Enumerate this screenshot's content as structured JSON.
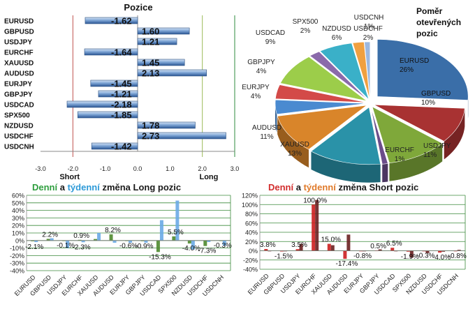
{
  "chart_data": [
    {
      "type": "bar",
      "orientation": "horizontal",
      "title": "Pozice",
      "categories": [
        "EURUSD",
        "GBPUSD",
        "USDJPY",
        "EURCHF",
        "XAUUSD",
        "AUDUSD",
        "EURJPY",
        "GBPJPY",
        "USDCAD",
        "SPX500",
        "NZDUSD",
        "USDCHF",
        "USDCNH"
      ],
      "values": [
        -1.62,
        1.6,
        1.21,
        -1.64,
        1.45,
        2.13,
        -1.45,
        -1.21,
        -2.18,
        -1.85,
        1.78,
        2.73,
        -1.42
      ],
      "labels": [
        "-1.62",
        "1.60",
        "1.21",
        "-1.64",
        "1.45",
        "2.13",
        "-1.45",
        "-1.21",
        "-2.18",
        "-1.85",
        "1.78",
        "2.73",
        "-1.42"
      ],
      "xlim": [
        -3.0,
        3.0
      ],
      "ticks": [
        "-3.0",
        "-2.0",
        "-1.0",
        "0.0",
        "1.0",
        "2.0",
        "3.0"
      ],
      "annotations": {
        "short": "Short",
        "long": "Long"
      },
      "colors": {
        "bar": "#4f81bd",
        "short_line": "#c0504d",
        "long_line": "#9bbb59"
      }
    },
    {
      "type": "pie",
      "title_lines": [
        "Poměr",
        "otevřených",
        "pozic"
      ],
      "slices": [
        {
          "name": "EURUSD",
          "value": 26,
          "label": "EURUSD\n26%",
          "color": "#3a6ea8"
        },
        {
          "name": "GBPUSD",
          "value": 10,
          "label": "GBPUSD\n10%",
          "color": "#a83232"
        },
        {
          "name": "USDJPY",
          "value": 11,
          "label": "USDJPY\n11%",
          "color": "#7fa83a"
        },
        {
          "name": "EURCHF",
          "value": 1,
          "label": "EURCHF\n1%",
          "color": "#6b4d8a"
        },
        {
          "name": "XAUUSD",
          "value": 13,
          "label": "XAUUSD\n13%",
          "color": "#2a92a8"
        },
        {
          "name": "AUDUSD",
          "value": 11,
          "label": "AUDUSD\n11%",
          "color": "#d9852a"
        },
        {
          "name": "EURJPY",
          "value": 4,
          "label": "EURJPY\n4%",
          "color": "#4a8ad0"
        },
        {
          "name": "GBPJPY",
          "value": 4,
          "label": "GBPJPY\n4%",
          "color": "#d34a48"
        },
        {
          "name": "USDCAD",
          "value": 9,
          "label": "USDCAD\n9%",
          "color": "#9ccd4a"
        },
        {
          "name": "SPX500",
          "value": 2,
          "label": "SPX500\n2%",
          "color": "#8a6aaa"
        },
        {
          "name": "NZDUSD",
          "value": 6,
          "label": "NZDUSD\n6%",
          "color": "#3ab0c8"
        },
        {
          "name": "USDCHF",
          "value": 2,
          "label": "USDCHF\n2%",
          "color": "#f0a040"
        },
        {
          "name": "USDCNH",
          "value": 1,
          "label": "USDCNH\n1%",
          "color": "#9cb8e0"
        }
      ]
    },
    {
      "type": "bar",
      "title_parts": [
        {
          "text": "Denní",
          "color": "#2e9e3e"
        },
        {
          "text": " a ",
          "color": "#1a1a1a"
        },
        {
          "text": "týdenní",
          "color": "#2d9ad8"
        },
        {
          "text": " změna Long pozic",
          "color": "#1a1a1a"
        }
      ],
      "categories": [
        "EURUSD",
        "GBPUSD",
        "USDJPY",
        "EURCHF",
        "XAUUSD",
        "AUDUSD",
        "EURJPY",
        "GBPJPY",
        "USDCAD",
        "SPX500",
        "NZDUSD",
        "USDCHF",
        "USDCNH"
      ],
      "series": [
        {
          "name": "Denní",
          "values": [
            -1.0,
            2.2,
            -0.1,
            0.9,
            2.0,
            8.2,
            -0.6,
            -0.9,
            -15.3,
            5.5,
            -4.0,
            -7.3,
            -0.3
          ],
          "color": "#4e8a2e"
        },
        {
          "name": "týdenní",
          "values": [
            -2.1,
            3.0,
            -10.0,
            -2.3,
            10.0,
            -3.0,
            -3.0,
            -3.0,
            27.0,
            53.0,
            -12.0,
            -2.0,
            -7.0
          ],
          "color": "#6aaae6"
        }
      ],
      "data_labels": [
        {
          "i": 0,
          "text": "-2.1%",
          "v": -2.1
        },
        {
          "i": 1,
          "text": "2.2%",
          "v": 2.2
        },
        {
          "i": 2,
          "text": "-0.1%",
          "v": -0.1
        },
        {
          "i": 3,
          "text": "-2.3%",
          "v": -2.3
        },
        {
          "i": 3,
          "text": "0.9%",
          "v": 0.9
        },
        {
          "i": 5,
          "text": "8.2%",
          "v": 8.2
        },
        {
          "i": 6,
          "text": "-0.6%",
          "v": -0.6
        },
        {
          "i": 7,
          "text": "-0.9%",
          "v": -0.9
        },
        {
          "i": 8,
          "text": "-15.3%",
          "v": -15.3
        },
        {
          "i": 9,
          "text": "5.5%",
          "v": 5.5
        },
        {
          "i": 10,
          "text": "-4.0%",
          "v": -4.0
        },
        {
          "i": 11,
          "text": "-7.3%",
          "v": -7.3
        },
        {
          "i": 12,
          "text": "-0.3%",
          "v": -0.3
        }
      ],
      "ylim": [
        -40,
        60
      ],
      "ticks": [
        "60%",
        "50%",
        "40%",
        "30%",
        "20%",
        "10%",
        "0%",
        "-10%",
        "-20%",
        "-30%",
        "-40%"
      ]
    },
    {
      "type": "bar",
      "title_parts": [
        {
          "text": "Denní",
          "color": "#d22c2c"
        },
        {
          "text": " a ",
          "color": "#1a1a1a"
        },
        {
          "text": "týdenní",
          "color": "#e07a2a"
        },
        {
          "text": " změna Short pozic",
          "color": "#1a1a1a"
        }
      ],
      "categories": [
        "EURUSD",
        "GBPUSD",
        "USDJPY",
        "EURCHF",
        "XAUUSD",
        "AUDUSD",
        "EURJPY",
        "GBPJPY",
        "USDCAD",
        "SPX500",
        "NZDUSD",
        "USDCHF",
        "USDCNH"
      ],
      "series": [
        {
          "name": "Denní",
          "values": [
            3.8,
            -1.5,
            3.5,
            100.0,
            15.0,
            -17.4,
            -0.8,
            0.5,
            6.5,
            -1.9,
            -0.3,
            -4.0,
            -0.8
          ],
          "color": "#cc1f1f"
        },
        {
          "name": "týdenní",
          "values": [
            -1.0,
            -1.0,
            15.0,
            110.0,
            12.0,
            35.0,
            0.0,
            3.0,
            -1.0,
            -15.0,
            -5.0,
            -2.0,
            2.0
          ],
          "color": "#6a2020"
        }
      ],
      "data_labels": [
        {
          "i": 0,
          "text": "3.8%",
          "v": 3.8
        },
        {
          "i": 1,
          "text": "-1.5%",
          "v": -1.5
        },
        {
          "i": 2,
          "text": "3.5%",
          "v": 3.5
        },
        {
          "i": 3,
          "text": "100.0%",
          "v": 100.0
        },
        {
          "i": 4,
          "text": "15.0%",
          "v": 15.0
        },
        {
          "i": 5,
          "text": "-17.4%",
          "v": -17.4
        },
        {
          "i": 6,
          "text": "-0.8%",
          "v": -0.8
        },
        {
          "i": 7,
          "text": "0.5%",
          "v": 0.5
        },
        {
          "i": 8,
          "text": "6.5%",
          "v": 6.5
        },
        {
          "i": 9,
          "text": "-1.9%",
          "v": -1.9
        },
        {
          "i": 10,
          "text": "-0.3%",
          "v": -0.3
        },
        {
          "i": 11,
          "text": "-4.0%",
          "v": -4.0
        },
        {
          "i": 12,
          "text": "-0.8%",
          "v": -0.8
        }
      ],
      "ylim": [
        -40,
        120
      ],
      "ticks": [
        "120%",
        "100%",
        "80%",
        "60%",
        "40%",
        "20%",
        "0%",
        "-20%",
        "-40%"
      ]
    }
  ]
}
